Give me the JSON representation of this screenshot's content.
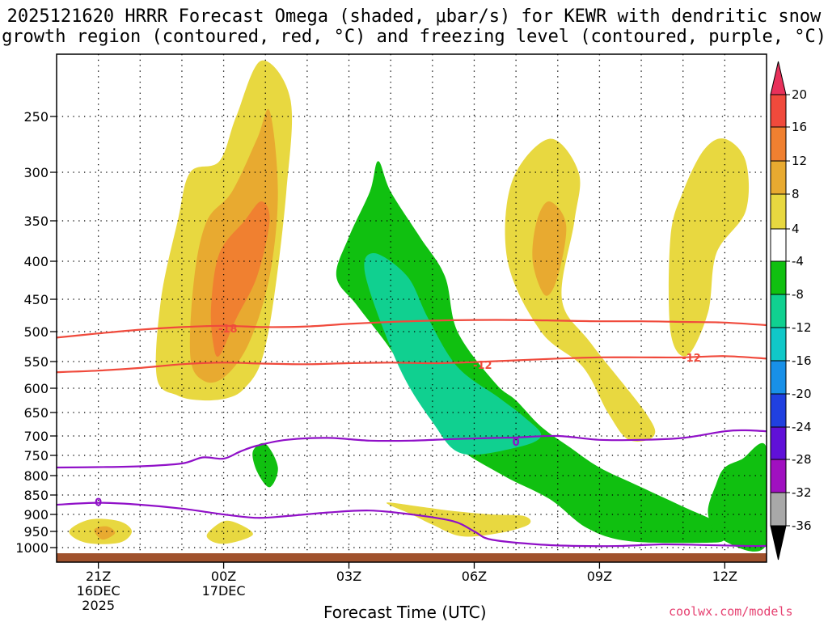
{
  "title": {
    "line1": "2025121620 HRRR Forecast Omega (shaded, μbar/s) for KEWR with dendritic snow",
    "line2": "growth region (contoured, red, °C) and freezing level (contoured, purple, °C)"
  },
  "xlabel": "Forecast Time (UTC)",
  "credit": "coolwx.com/models",
  "colors": {
    "dgz_contour": "#f04a3c",
    "freezing_contour": "#9010c8",
    "ground": "#a0522d"
  },
  "chart_data": {
    "type": "time-height cross section",
    "y_axis": {
      "quantity": "pressure (hPa)",
      "range": [
        1000,
        200
      ],
      "inverted": true,
      "ticks": [
        "250",
        "300",
        "350",
        "400",
        "450",
        "500",
        "550",
        "600",
        "650",
        "700",
        "750",
        "800",
        "850",
        "900",
        "950",
        "1000"
      ]
    },
    "x_axis": {
      "quantity": "forecast hour",
      "range": [
        0,
        17
      ],
      "ticks": [
        {
          "hour": 1,
          "label": "21Z",
          "date1": "16DEC",
          "date2": "2025"
        },
        {
          "hour": 4,
          "label": "00Z",
          "date1": "17DEC",
          "date2": ""
        },
        {
          "hour": 7,
          "label": "03Z",
          "date1": "",
          "date2": ""
        },
        {
          "hour": 10,
          "label": "06Z",
          "date1": "",
          "date2": ""
        },
        {
          "hour": 13,
          "label": "09Z",
          "date1": "",
          "date2": ""
        },
        {
          "hour": 16,
          "label": "12Z",
          "date1": "",
          "date2": ""
        }
      ]
    },
    "colorbar": {
      "levels": [
        "20",
        "16",
        "12",
        "8",
        "4",
        "-4",
        "-8",
        "-12",
        "-16",
        "-20",
        "-24",
        "-28",
        "-32",
        "-36"
      ],
      "colors": [
        "#e8305a",
        "#f04a3c",
        "#f08030",
        "#e8aa30",
        "#e8d840",
        "#ffffff",
        "#10c010",
        "#10d090",
        "#10c8c8",
        "#1890e8",
        "#2040e0",
        "#6010d8",
        "#a010c0",
        "#a8a8a8",
        "#000000"
      ]
    },
    "omega_regions": [
      {
        "level": 4,
        "color": "#e8d840",
        "points": [
          [
            2.4,
            580
          ],
          [
            2.5,
            450
          ],
          [
            2.9,
            350
          ],
          [
            3.2,
            300
          ],
          [
            3.9,
            290
          ],
          [
            4.3,
            250
          ],
          [
            4.9,
            200
          ],
          [
            5.6,
            235
          ],
          [
            5.5,
            320
          ],
          [
            5.2,
            450
          ],
          [
            4.9,
            550
          ],
          [
            4.5,
            600
          ],
          [
            4.1,
            620
          ],
          [
            3.5,
            625
          ],
          [
            2.9,
            615
          ]
        ]
      },
      {
        "level": 8,
        "color": "#e8aa30",
        "points": [
          [
            3.2,
            540
          ],
          [
            3.3,
            420
          ],
          [
            3.6,
            350
          ],
          [
            4.2,
            320
          ],
          [
            4.8,
            270
          ],
          [
            5.1,
            245
          ],
          [
            5.3,
            320
          ],
          [
            5.1,
            420
          ],
          [
            4.6,
            520
          ],
          [
            4.0,
            580
          ],
          [
            3.5,
            585
          ]
        ]
      },
      {
        "level": 12,
        "color": "#f08030",
        "points": [
          [
            3.7,
            460
          ],
          [
            3.9,
            390
          ],
          [
            4.5,
            350
          ],
          [
            4.9,
            330
          ],
          [
            5.1,
            350
          ],
          [
            4.8,
            420
          ],
          [
            4.3,
            480
          ],
          [
            3.9,
            540
          ],
          [
            3.75,
            520
          ]
        ]
      },
      {
        "level": 4,
        "color": "#e8d840",
        "points": [
          [
            10.9,
            310
          ],
          [
            11.8,
            270
          ],
          [
            12.5,
            300
          ],
          [
            12.4,
            350
          ],
          [
            12.1,
            450
          ],
          [
            12.8,
            520
          ],
          [
            14.1,
            650
          ],
          [
            14.3,
            700
          ],
          [
            13.7,
            710
          ],
          [
            13.2,
            650
          ],
          [
            12.6,
            560
          ],
          [
            11.6,
            500
          ],
          [
            10.8,
            400
          ]
        ]
      },
      {
        "level": 8,
        "color": "#e8aa30",
        "points": [
          [
            11.5,
            350
          ],
          [
            11.8,
            330
          ],
          [
            12.2,
            355
          ],
          [
            12.0,
            420
          ],
          [
            11.7,
            445
          ],
          [
            11.4,
            400
          ]
        ]
      },
      {
        "level": 4,
        "color": "#e8d840",
        "points": [
          [
            14.7,
            370
          ],
          [
            15.0,
            320
          ],
          [
            15.5,
            280
          ],
          [
            16.0,
            270
          ],
          [
            16.5,
            290
          ],
          [
            16.5,
            340
          ],
          [
            15.8,
            390
          ],
          [
            15.6,
            470
          ],
          [
            15.1,
            540
          ],
          [
            14.7,
            500
          ]
        ]
      },
      {
        "level": -4,
        "color": "#10c010",
        "points": [
          [
            6.7,
            420
          ],
          [
            7.0,
            370
          ],
          [
            7.5,
            320
          ],
          [
            7.7,
            290
          ],
          [
            8.0,
            320
          ],
          [
            8.7,
            370
          ],
          [
            9.3,
            420
          ],
          [
            9.6,
            500
          ],
          [
            10.5,
            590
          ],
          [
            11.0,
            625
          ],
          [
            11.6,
            680
          ],
          [
            12.3,
            730
          ],
          [
            13.0,
            780
          ],
          [
            14.0,
            830
          ],
          [
            15.0,
            880
          ],
          [
            15.9,
            930
          ],
          [
            16.0,
            975
          ],
          [
            15.5,
            985
          ],
          [
            13.7,
            980
          ],
          [
            12.7,
            940
          ],
          [
            11.8,
            860
          ],
          [
            10.7,
            800
          ],
          [
            9.5,
            720
          ],
          [
            8.7,
            620
          ],
          [
            8.0,
            530
          ],
          [
            7.2,
            460
          ]
        ]
      },
      {
        "level": -4,
        "color": "#10c010",
        "points": [
          [
            15.8,
            820
          ],
          [
            16.0,
            780
          ],
          [
            16.4,
            760
          ],
          [
            17.0,
            730
          ],
          [
            17.0,
            990
          ],
          [
            16.0,
            980
          ],
          [
            15.6,
            900
          ]
        ]
      },
      {
        "level": -8,
        "color": "#10d090",
        "points": [
          [
            7.4,
            420
          ],
          [
            7.6,
            390
          ],
          [
            8.4,
            420
          ],
          [
            8.9,
            480
          ],
          [
            9.6,
            560
          ],
          [
            10.6,
            620
          ],
          [
            11.2,
            660
          ],
          [
            11.6,
            700
          ],
          [
            11.0,
            730
          ],
          [
            9.7,
            745
          ],
          [
            9.0,
            670
          ],
          [
            8.2,
            560
          ]
        ]
      },
      {
        "level": -4,
        "color": "#10c010",
        "points": [
          [
            4.7,
            740
          ],
          [
            5.0,
            720
          ],
          [
            5.3,
            780
          ],
          [
            5.1,
            830
          ],
          [
            4.8,
            790
          ]
        ]
      },
      {
        "level": 4,
        "color": "#e8d840",
        "points": [
          [
            0.3,
            950
          ],
          [
            0.8,
            915
          ],
          [
            1.5,
            920
          ],
          [
            1.8,
            950
          ],
          [
            1.5,
            985
          ],
          [
            0.7,
            985
          ]
        ]
      },
      {
        "level": 8,
        "color": "#e8aa30",
        "points": [
          [
            0.9,
            945
          ],
          [
            1.2,
            935
          ],
          [
            1.4,
            955
          ],
          [
            1.1,
            975
          ]
        ]
      },
      {
        "level": 4,
        "color": "#e8d840",
        "points": [
          [
            3.6,
            960
          ],
          [
            4.0,
            920
          ],
          [
            4.4,
            930
          ],
          [
            4.7,
            960
          ],
          [
            4.2,
            985
          ],
          [
            3.8,
            985
          ]
        ]
      },
      {
        "level": 4,
        "color": "#e8d840",
        "points": [
          [
            7.9,
            870
          ],
          [
            8.7,
            880
          ],
          [
            9.4,
            890
          ],
          [
            10.4,
            900
          ],
          [
            11.2,
            905
          ],
          [
            11.3,
            930
          ],
          [
            10.6,
            955
          ],
          [
            9.7,
            965
          ],
          [
            9.0,
            930
          ],
          [
            8.5,
            900
          ]
        ]
      }
    ],
    "dgz_contours": [
      {
        "label": "-18",
        "label_at": [
          4.1,
          495
        ],
        "points": [
          [
            0,
            510
          ],
          [
            1,
            503
          ],
          [
            2,
            497
          ],
          [
            3,
            493
          ],
          [
            4,
            491
          ],
          [
            5,
            493
          ],
          [
            6,
            492
          ],
          [
            7,
            488
          ],
          [
            8,
            485
          ],
          [
            9,
            483
          ],
          [
            10,
            482
          ],
          [
            11,
            482
          ],
          [
            12,
            483
          ],
          [
            13,
            484
          ],
          [
            14,
            484
          ],
          [
            15,
            485
          ],
          [
            16,
            486
          ],
          [
            17,
            490
          ]
        ]
      },
      {
        "label": "-12",
        "label_at": [
          10.2,
          556
        ],
        "points": [
          [
            0,
            570
          ],
          [
            1,
            567
          ],
          [
            2,
            562
          ],
          [
            3,
            555
          ],
          [
            4,
            552
          ],
          [
            5,
            554
          ],
          [
            6,
            555
          ],
          [
            7,
            553
          ],
          [
            8,
            552
          ],
          [
            9,
            553
          ],
          [
            10,
            551
          ],
          [
            11,
            548
          ],
          [
            12,
            545
          ],
          [
            13,
            543
          ],
          [
            14,
            543
          ],
          [
            15,
            543
          ],
          [
            16,
            541
          ],
          [
            17,
            545
          ]
        ]
      },
      {
        "label": "-12",
        "label_at": [
          15.2,
          543
        ],
        "points": []
      }
    ],
    "freezing_contours": [
      {
        "label": "0",
        "label_at": [
          11.0,
          715
        ],
        "points": [
          [
            0,
            780
          ],
          [
            1,
            779
          ],
          [
            2,
            777
          ],
          [
            3,
            770
          ],
          [
            3.5,
            755
          ],
          [
            4,
            758
          ],
          [
            4.4,
            740
          ],
          [
            4.8,
            725
          ],
          [
            5.5,
            710
          ],
          [
            6.5,
            705
          ],
          [
            7.5,
            712
          ],
          [
            8.5,
            712
          ],
          [
            9.5,
            708
          ],
          [
            10.5,
            705
          ],
          [
            11,
            704
          ],
          [
            12,
            700
          ],
          [
            13,
            710
          ],
          [
            14,
            710
          ],
          [
            15,
            705
          ],
          [
            16,
            690
          ],
          [
            16.5,
            688
          ],
          [
            17,
            690
          ]
        ]
      },
      {
        "label": "0",
        "label_at": [
          1.0,
          868
        ],
        "points": [
          [
            0,
            875
          ],
          [
            1,
            870
          ],
          [
            2,
            875
          ],
          [
            3,
            885
          ],
          [
            4,
            900
          ],
          [
            4.8,
            910
          ],
          [
            5.5,
            905
          ],
          [
            6.5,
            895
          ],
          [
            7.5,
            890
          ],
          [
            8.5,
            900
          ],
          [
            9.5,
            920
          ],
          [
            10,
            950
          ],
          [
            10.4,
            975
          ],
          [
            11.5,
            990
          ],
          [
            12.5,
            995
          ],
          [
            13.5,
            995
          ],
          [
            14.5,
            990
          ],
          [
            15.5,
            992
          ],
          [
            16.5,
            995
          ],
          [
            17,
            995
          ]
        ]
      }
    ]
  }
}
